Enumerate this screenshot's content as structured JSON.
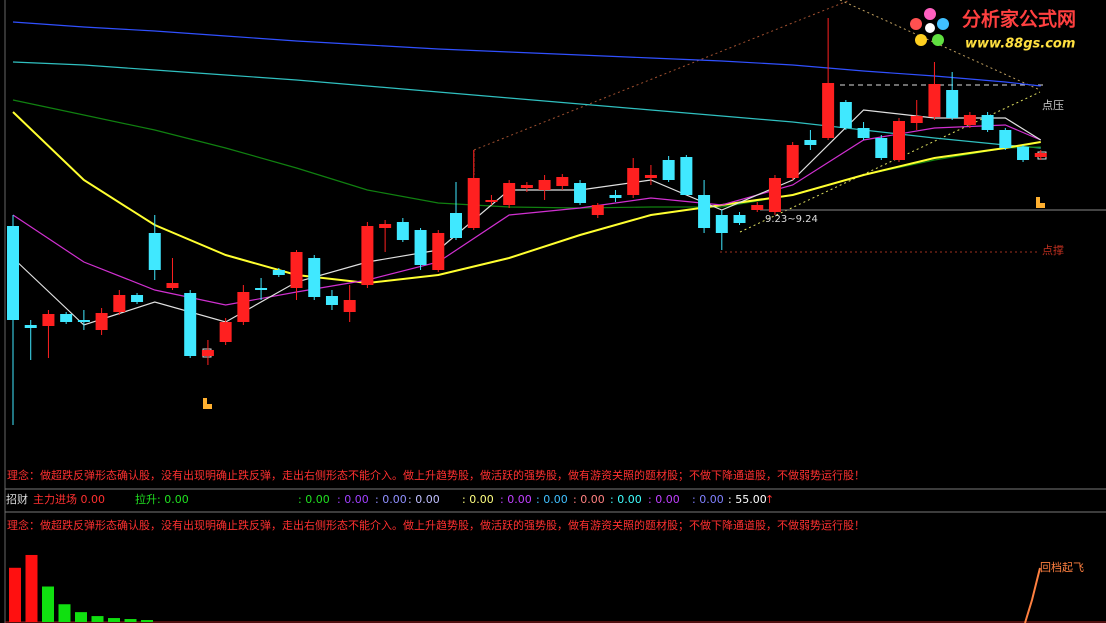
{
  "logo": {
    "name": "分析家公式网",
    "url": "www.88gs.com"
  },
  "annotations": {
    "resist": "点压",
    "support": "点撑",
    "range": "9.23~9.24",
    "takeoff": "回档起飞"
  },
  "notes": [
    "理念：做超跌反弹形态确认股，没有出现明确止跌反弹，走出右侧形态不能介入。做上升趋势股，做活跃的强势股，做有游资关照的题材股；不做下降通道股，不做弱势运行股！",
    "理念：做超跌反弹形态确认股，没有出现明确止跌反弹，走出右侧形态不能介入。做上升趋势股，做活跃的强势股，做有游资关照的题材股；不做下降通道股，不做弱势运行股！"
  ],
  "indicator": {
    "name": "招财",
    "items": [
      {
        "text": "主力进场 0.00",
        "color": "#ff3030"
      },
      {
        "text": "拉升: 0.00",
        "color": "#20e020"
      },
      {
        "text": ": 0.00",
        "color": "#20e020"
      },
      {
        "text": ": 0.00",
        "color": "#a040ff"
      },
      {
        "text": ": 0.00",
        "color": "#9090ff"
      },
      {
        "text": ": 0.00",
        "color": "#c0c0ff"
      },
      {
        "text": ": 0.00",
        "color": "#ffff80"
      },
      {
        "text": ": 0.00",
        "color": "#c040ff"
      },
      {
        "text": ": 0.00",
        "color": "#40c0ff"
      },
      {
        "text": ": 0.00",
        "color": "#ff8080"
      },
      {
        "text": ": 0.00",
        "color": "#40ffff"
      },
      {
        "text": ": 0.00",
        "color": "#c040ff"
      },
      {
        "text": ": 0.00",
        "color": "#8080ff"
      },
      {
        "text": ": 55.00",
        "color": "#ffffff"
      },
      {
        "text": "↑",
        "color": "#ff3030"
      }
    ]
  },
  "chart_data": [
    {
      "type": "candlestick",
      "ylim": [
        0,
        440
      ],
      "up_color": "#ff2020",
      "down_color": "#40e8ff",
      "open": [
        214,
        115,
        114,
        126,
        120,
        110,
        128,
        145,
        207,
        152,
        147,
        84,
        98,
        118,
        152,
        170,
        152,
        182,
        144,
        128,
        155,
        212,
        218,
        210,
        170,
        227,
        212,
        238,
        235,
        252,
        250,
        254,
        257,
        225,
        245,
        245,
        262,
        280,
        283,
        245,
        225,
        225,
        230,
        228,
        262,
        300,
        302,
        338,
        312,
        302,
        280,
        317,
        323,
        350,
        315,
        325,
        310,
        293,
        283
      ],
      "high": [
        225,
        120,
        130,
        128,
        130,
        132,
        150,
        147,
        225,
        182,
        150,
        100,
        122,
        155,
        162,
        172,
        190,
        185,
        150,
        155,
        218,
        220,
        222,
        212,
        210,
        258,
        290,
        245,
        260,
        258,
        265,
        266,
        260,
        237,
        250,
        282,
        275,
        284,
        285,
        260,
        230,
        228,
        238,
        265,
        298,
        310,
        422,
        340,
        318,
        305,
        322,
        340,
        378,
        368,
        328,
        328,
        312,
        295,
        290
      ],
      "low": [
        15,
        80,
        82,
        116,
        110,
        105,
        125,
        136,
        160,
        150,
        82,
        75,
        95,
        115,
        140,
        163,
        140,
        140,
        130,
        118,
        152,
        188,
        198,
        170,
        168,
        200,
        210,
        235,
        232,
        248,
        240,
        250,
        235,
        222,
        238,
        242,
        255,
        258,
        245,
        207,
        190,
        215,
        228,
        225,
        260,
        290,
        300,
        310,
        300,
        280,
        278,
        310,
        320,
        320,
        312,
        308,
        290,
        278,
        280
      ],
      "close": [
        120,
        112,
        126,
        118,
        118,
        127,
        145,
        138,
        170,
        157,
        84,
        90,
        118,
        148,
        150,
        165,
        188,
        143,
        135,
        140,
        214,
        216,
        200,
        175,
        207,
        202,
        262,
        240,
        257,
        255,
        260,
        263,
        237,
        235,
        242,
        272,
        265,
        260,
        245,
        212,
        207,
        217,
        235,
        262,
        295,
        295,
        357,
        312,
        302,
        282,
        319,
        324,
        356,
        322,
        325,
        310,
        292,
        280,
        287
      ],
      "series": [
        {
          "color": "#3050ff",
          "x": [
            0,
            4,
            8,
            12,
            16,
            20,
            24,
            28,
            32,
            36,
            40,
            44,
            48,
            52,
            56,
            58
          ],
          "values": [
            418,
            413,
            409,
            404,
            399,
            395,
            391,
            388,
            385,
            382,
            379,
            375,
            369,
            364,
            358,
            354
          ]
        },
        {
          "color": "#30c0c0",
          "x": [
            0,
            4,
            8,
            12,
            16,
            20,
            24,
            28,
            32,
            36,
            40,
            44,
            48,
            52,
            56,
            58
          ],
          "values": [
            378,
            375,
            370,
            365,
            360,
            354,
            348,
            342,
            336,
            330,
            324,
            318,
            310,
            302,
            295,
            292
          ]
        },
        {
          "color": "#108010",
          "x": [
            0,
            4,
            8,
            12,
            16,
            20,
            24,
            28,
            32,
            36,
            40,
            44,
            48,
            52,
            56,
            58
          ],
          "values": [
            340,
            325,
            310,
            292,
            272,
            250,
            237,
            233,
            232,
            233,
            233,
            245,
            265,
            280,
            292,
            293
          ]
        },
        {
          "color": "#ffff30",
          "x": [
            0,
            4,
            8,
            12,
            16,
            20,
            24,
            28,
            32,
            36,
            40,
            44,
            48,
            52,
            56,
            58
          ],
          "values": [
            328,
            260,
            215,
            185,
            165,
            157,
            165,
            182,
            205,
            225,
            235,
            245,
            265,
            282,
            292,
            298
          ]
        },
        {
          "color": "#d030d0",
          "x": [
            0,
            4,
            8,
            12,
            16,
            20,
            24,
            28,
            32,
            36,
            40,
            44,
            48,
            52,
            56,
            58
          ],
          "values": [
            225,
            178,
            150,
            135,
            148,
            160,
            178,
            225,
            232,
            242,
            235,
            255,
            300,
            312,
            315,
            300
          ]
        },
        {
          "color": "#e0e0e0",
          "x": [
            0,
            4,
            8,
            12,
            16,
            20,
            24,
            28,
            32,
            36,
            40,
            44,
            48,
            52,
            56,
            58
          ],
          "values": [
            182,
            115,
            138,
            118,
            158,
            178,
            190,
            250,
            250,
            260,
            230,
            260,
            330,
            322,
            322,
            300
          ]
        }
      ]
    },
    {
      "type": "bar",
      "ylim": [
        0,
        70
      ],
      "values": [
        55,
        68,
        36,
        18,
        10,
        6,
        4,
        3,
        2
      ],
      "colors": [
        "#ff1010",
        "#ff1010",
        "#10e010",
        "#10e010",
        "#10e010",
        "#10e010",
        "#10e010",
        "#10e010",
        "#10e010"
      ]
    }
  ]
}
